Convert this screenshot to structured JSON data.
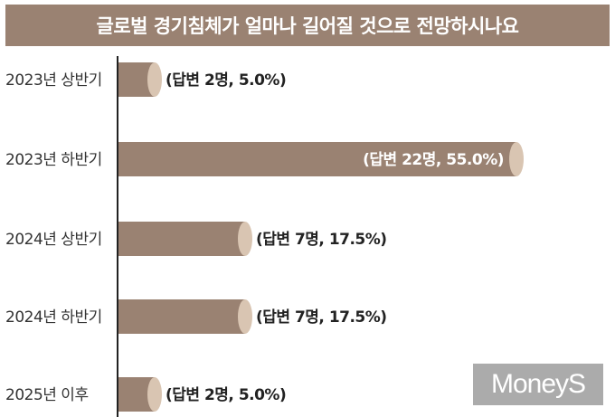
{
  "chart_data": {
    "type": "bar",
    "orientation": "horizontal",
    "title": "글로벌 경기침체가 얼마나 길어질 것으로 전망하시나요",
    "categories": [
      "2023년 상반기",
      "2023년 하반기",
      "2024년 상반기",
      "2024년 하반기",
      "2025년 이후"
    ],
    "values": [
      5.0,
      55.0,
      17.5,
      17.5,
      5.0
    ],
    "counts": [
      2,
      22,
      7,
      7,
      2
    ],
    "data_labels": [
      "(답변 2명, 5.0%)",
      "(답변 22명, 55.0%)",
      "(답변 7명, 17.5%)",
      "(답변 7명, 17.5%)",
      "(답변 2명, 5.0%)"
    ],
    "xlim": [
      0,
      60
    ],
    "grid": false,
    "bar_color": "#9a8272",
    "bar_cap_color": "#d9c5b2"
  },
  "branding": {
    "logo_text": "MoneyS"
  }
}
